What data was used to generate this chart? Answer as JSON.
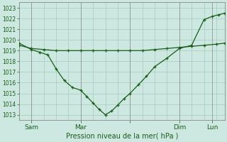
{
  "xlabel": "Pression niveau de la mer( hPa )",
  "yticks": [
    1013,
    1014,
    1015,
    1016,
    1017,
    1018,
    1019,
    1020,
    1021,
    1022,
    1023
  ],
  "ylim": [
    1012.5,
    1023.5
  ],
  "xlim": [
    0,
    100
  ],
  "xtick_positions": [
    6,
    30,
    54,
    78,
    94
  ],
  "xtick_labels": [
    "Sam",
    "Mar",
    "",
    "Dim",
    "Lun"
  ],
  "day_vlines": [
    6,
    30,
    54,
    78,
    94
  ],
  "bg_color": "#cce8e0",
  "line_color": "#1a5c1a",
  "grid_color": "#a8ccbe",
  "flat_x": [
    0,
    6,
    12,
    18,
    24,
    30,
    36,
    42,
    48,
    54,
    60,
    66,
    72,
    78,
    84,
    90,
    96,
    100
  ],
  "flat_y": [
    1019.5,
    1019.2,
    1019.1,
    1019.0,
    1019.0,
    1019.0,
    1019.0,
    1019.0,
    1019.0,
    1019.0,
    1019.0,
    1019.1,
    1019.2,
    1019.3,
    1019.4,
    1019.5,
    1019.6,
    1019.7
  ],
  "dip_x": [
    0,
    6,
    10,
    14,
    18,
    22,
    26,
    30,
    33,
    36,
    39,
    42,
    45,
    48,
    51,
    54,
    58,
    62,
    66,
    72,
    78,
    84,
    90,
    94,
    97,
    100
  ],
  "dip_y": [
    1019.7,
    1019.1,
    1018.85,
    1018.6,
    1017.3,
    1016.2,
    1015.55,
    1015.3,
    1014.7,
    1014.1,
    1013.5,
    1013.0,
    1013.35,
    1013.9,
    1014.5,
    1015.0,
    1015.8,
    1016.6,
    1017.5,
    1018.3,
    1019.2,
    1019.5,
    1021.9,
    1022.2,
    1022.35,
    1022.5
  ]
}
